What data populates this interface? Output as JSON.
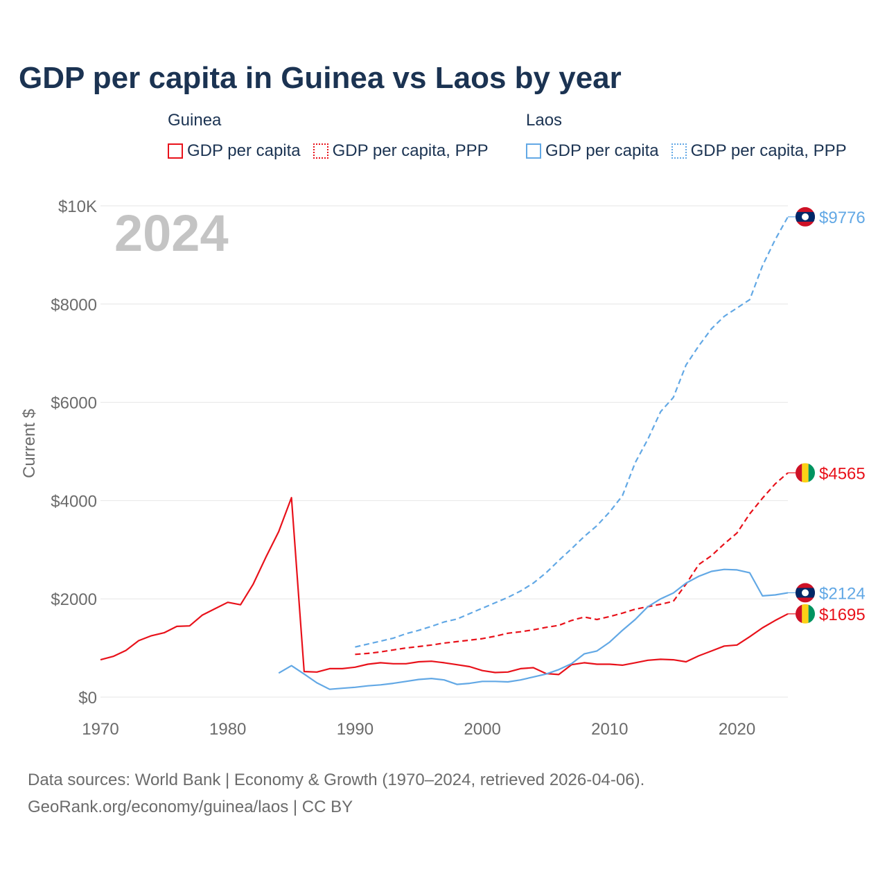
{
  "title": "GDP per capita in Guinea vs Laos by year",
  "legend": {
    "groups": [
      {
        "name": "Guinea",
        "items": [
          "GDP per capita",
          "GDP per capita, PPP"
        ]
      },
      {
        "name": "Laos",
        "items": [
          "GDP per capita",
          "GDP per capita, PPP"
        ]
      }
    ]
  },
  "colors": {
    "guinea": "#e8111a",
    "laos": "#62a8e5",
    "grid": "#e6e6e6",
    "axis_text": "#6b6b6b",
    "year_watermark": "#c4c4c4"
  },
  "footer": {
    "line1": "Data sources: World Bank | Economy & Growth (1970–2024, retrieved 2026-04-06).",
    "line2": "GeoRank.org/economy/guinea/laos | CC BY"
  },
  "chart_data": {
    "type": "line",
    "year_label": "2024",
    "ylabel": "Current $",
    "xlabel": "",
    "xlim": [
      1970,
      2024
    ],
    "ylim": [
      0,
      10000
    ],
    "x_ticks": [
      1970,
      1980,
      1990,
      2000,
      2010,
      2020
    ],
    "x_tick_labels": [
      "1970",
      "1980",
      "1990",
      "2000",
      "2010",
      "2020"
    ],
    "y_ticks": [
      0,
      2000,
      4000,
      6000,
      8000,
      10000
    ],
    "y_tick_labels": [
      "$0",
      "$2000",
      "$4000",
      "$6000",
      "$8000",
      "$10K"
    ],
    "series": [
      {
        "name": "Guinea GDP per capita",
        "country": "guinea",
        "style": "solid",
        "start_year": 1970,
        "end_label": "$1695",
        "flag": "guinea",
        "values": [
          760,
          830,
          950,
          1150,
          1250,
          1310,
          1440,
          1450,
          1670,
          1800,
          1930,
          1880,
          2300,
          2850,
          3370,
          4060,
          520,
          510,
          580,
          580,
          610,
          670,
          700,
          680,
          680,
          720,
          730,
          700,
          660,
          620,
          540,
          500,
          510,
          580,
          600,
          480,
          460,
          660,
          700,
          670,
          670,
          650,
          700,
          750,
          770,
          760,
          720,
          840,
          940,
          1040,
          1060,
          1230,
          1410,
          1560,
          1695
        ]
      },
      {
        "name": "Guinea GDP per capita, PPP",
        "country": "guinea",
        "style": "dashed",
        "start_year": 1990,
        "end_label": "$4565",
        "flag": "guinea",
        "values": [
          870,
          890,
          920,
          960,
          1000,
          1030,
          1060,
          1100,
          1130,
          1160,
          1190,
          1240,
          1300,
          1330,
          1370,
          1420,
          1460,
          1560,
          1630,
          1580,
          1640,
          1710,
          1790,
          1840,
          1890,
          1950,
          2300,
          2700,
          2880,
          3120,
          3340,
          3730,
          4050,
          4340,
          4565
        ]
      },
      {
        "name": "Laos GDP per capita",
        "country": "laos",
        "style": "solid",
        "start_year": 1984,
        "end_label": "$2124",
        "flag": "laos",
        "values": [
          490,
          640,
          470,
          290,
          160,
          180,
          200,
          230,
          250,
          280,
          320,
          360,
          380,
          350,
          260,
          280,
          320,
          320,
          310,
          350,
          410,
          470,
          560,
          680,
          880,
          940,
          1120,
          1360,
          1580,
          1840,
          2000,
          2120,
          2320,
          2460,
          2560,
          2600,
          2590,
          2530,
          2060,
          2080,
          2124
        ]
      },
      {
        "name": "Laos GDP per capita, PPP",
        "country": "laos",
        "style": "dashed",
        "start_year": 1990,
        "end_label": "$9776",
        "flag": "laos",
        "values": [
          1020,
          1080,
          1140,
          1200,
          1290,
          1360,
          1440,
          1530,
          1590,
          1700,
          1810,
          1920,
          2030,
          2160,
          2320,
          2530,
          2780,
          3020,
          3270,
          3490,
          3770,
          4100,
          4770,
          5250,
          5810,
          6100,
          6760,
          7150,
          7500,
          7750,
          7920,
          8090,
          8780,
          9310,
          9776
        ]
      }
    ]
  }
}
